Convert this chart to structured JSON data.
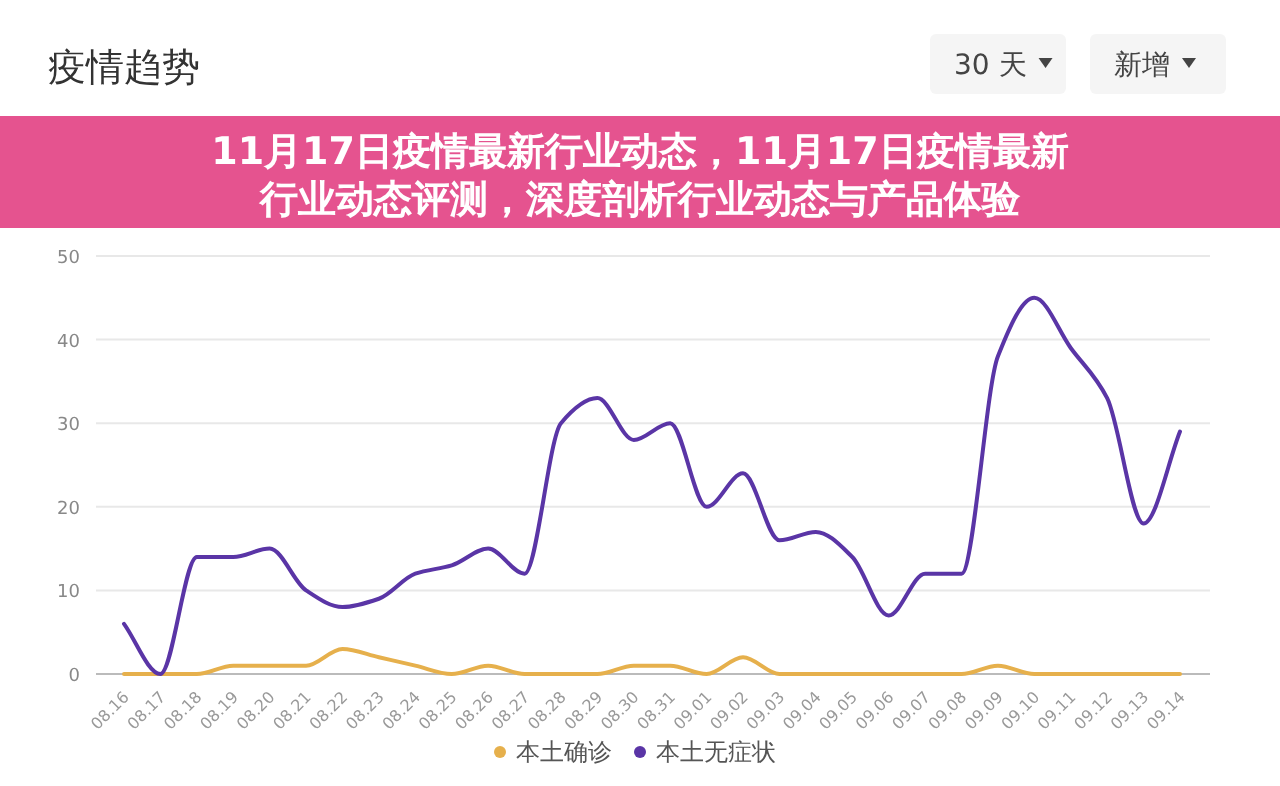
{
  "chart_data": {
    "type": "line",
    "title": "疫情趋势",
    "annotations": [
      "11月17日疫情最新行业动态，11月17日疫情最新行业动态评测，深度剖析行业动态与产品体验",
      "30 天",
      "新增"
    ],
    "categories": [
      "08.16",
      "08.17",
      "08.18",
      "08.19",
      "08.20",
      "08.21",
      "08.22",
      "08.23",
      "08.24",
      "08.25",
      "08.26",
      "08.27",
      "08.28",
      "08.29",
      "08.30",
      "08.31",
      "09.01",
      "09.02",
      "09.03",
      "09.04",
      "09.05",
      "09.06",
      "09.07",
      "09.08",
      "09.09",
      "09.10",
      "09.11",
      "09.12",
      "09.13",
      "09.14"
    ],
    "series": [
      {
        "name": "本土确诊",
        "color": "#e6b04c",
        "values": [
          0,
          0,
          0,
          1,
          1,
          1,
          3,
          2,
          1,
          0,
          1,
          0,
          0,
          0,
          1,
          1,
          0,
          2,
          0,
          0,
          0,
          0,
          0,
          0,
          1,
          0,
          0,
          0,
          0,
          0
        ]
      },
      {
        "name": "本土无症状",
        "color": "#5a35a6",
        "values": [
          6,
          0,
          14,
          14,
          15,
          10,
          8,
          9,
          12,
          13,
          15,
          12,
          30,
          33,
          28,
          30,
          20,
          24,
          16,
          17,
          14,
          7,
          12,
          12,
          38,
          45,
          39,
          33,
          18,
          29
        ]
      }
    ],
    "ylim": [
      0,
      50
    ],
    "yticks": [
      0,
      10,
      20,
      30,
      40,
      50
    ],
    "grid": "y",
    "legend": "bottom",
    "marker": "none"
  }
}
